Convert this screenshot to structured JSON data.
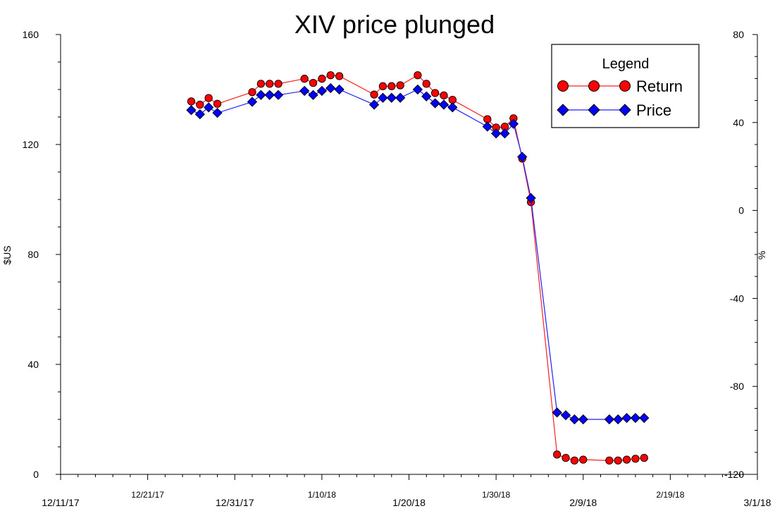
{
  "chart_data": {
    "type": "line",
    "title": "XIV price plunged",
    "ylabel_left": "$US",
    "ylabel_right": "%",
    "xlabel": "",
    "ylim_left": [
      0,
      160
    ],
    "ylim_right": [
      -120,
      80
    ],
    "left_ticks": [
      0,
      40,
      80,
      120,
      160
    ],
    "right_ticks": [
      -120,
      -80,
      -40,
      0,
      40,
      80
    ],
    "x_range_days": [
      0,
      80
    ],
    "x_ticks": [
      {
        "day": 0,
        "label": "12/11/17",
        "size": "large"
      },
      {
        "day": 10,
        "label": "12/21/17",
        "size": "small"
      },
      {
        "day": 20,
        "label": "12/31/17",
        "size": "large"
      },
      {
        "day": 30,
        "label": "1/10/18",
        "size": "small"
      },
      {
        "day": 40,
        "label": "1/20/18",
        "size": "large"
      },
      {
        "day": 50,
        "label": "1/30/18",
        "size": "small"
      },
      {
        "day": 60,
        "label": "2/9/18",
        "size": "large"
      },
      {
        "day": 70,
        "label": "2/19/18",
        "size": "small"
      },
      {
        "day": 80,
        "label": "3/1/18",
        "size": "large"
      }
    ],
    "legend": {
      "title": "Legend",
      "position": "top-right"
    },
    "series": [
      {
        "name": "Return",
        "axis": "right",
        "color": "#ff0000",
        "line_color": "#ff2020",
        "marker": "circle",
        "x": [
          15,
          16,
          17,
          18,
          22,
          23,
          24,
          25,
          28,
          29,
          30,
          31,
          32,
          36,
          37,
          38,
          39,
          41,
          42,
          43,
          44,
          45,
          49,
          50,
          51,
          52,
          53,
          54,
          57,
          58,
          59,
          60,
          63,
          64,
          65,
          66,
          67
        ],
        "values": [
          49.6,
          48.1,
          51.1,
          48.5,
          53.8,
          57.6,
          57.6,
          57.6,
          59.9,
          58.0,
          59.9,
          61.5,
          61.1,
          52.7,
          56.5,
          56.5,
          56.9,
          61.5,
          57.6,
          53.4,
          52.3,
          50.3,
          41.5,
          37.7,
          38.1,
          41.9,
          23.6,
          3.8,
          -111.0,
          -112.5,
          -113.7,
          -113.3,
          -113.7,
          -113.7,
          -113.3,
          -112.9,
          -112.5
        ]
      },
      {
        "name": "Price",
        "axis": "left",
        "color": "#0000ff",
        "line_color": "#2020ff",
        "marker": "diamond",
        "x": [
          15,
          16,
          17,
          18,
          22,
          23,
          24,
          25,
          28,
          29,
          30,
          31,
          32,
          36,
          37,
          38,
          39,
          41,
          42,
          43,
          44,
          45,
          49,
          50,
          51,
          52,
          53,
          54,
          57,
          58,
          59,
          60,
          63,
          64,
          65,
          66,
          67
        ],
        "values": [
          132.5,
          131.0,
          133.5,
          131.5,
          135.5,
          138.0,
          138.0,
          138.0,
          139.5,
          138.0,
          139.5,
          140.5,
          140.0,
          134.5,
          137.0,
          137.0,
          137.0,
          140.0,
          137.5,
          135.0,
          134.5,
          133.5,
          126.5,
          124.0,
          124.0,
          127.5,
          115.5,
          100.5,
          22.5,
          21.5,
          20.0,
          20.0,
          20.0,
          20.0,
          20.5,
          20.5,
          20.5
        ]
      }
    ]
  }
}
